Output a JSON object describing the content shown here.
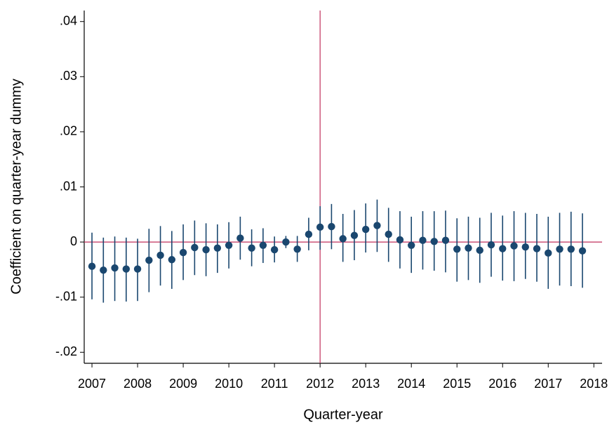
{
  "chart_data": {
    "type": "errorbar",
    "x_label": "Quarter-year",
    "y_label": "Coefficient on quarter-year dummy",
    "x": [
      2007,
      2007.25,
      2007.5,
      2007.75,
      2008,
      2008.25,
      2008.5,
      2008.75,
      2009,
      2009.25,
      2009.5,
      2009.75,
      2010,
      2010.25,
      2010.5,
      2010.75,
      2011,
      2011.25,
      2011.5,
      2011.75,
      2012,
      2012.25,
      2012.5,
      2012.75,
      2013,
      2013.25,
      2013.5,
      2013.75,
      2014,
      2014.25,
      2014.5,
      2014.75,
      2015,
      2015.25,
      2015.5,
      2015.75,
      2016,
      2016.25,
      2016.5,
      2016.75,
      2017,
      2017.25,
      2017.5,
      2017.75
    ],
    "series": [
      {
        "color": "#1a476f",
        "values": [
          -0.0044,
          -0.0051,
          -0.0047,
          -0.0049,
          -0.0049,
          -0.0033,
          -0.0024,
          -0.0032,
          -0.0019,
          -0.001,
          -0.0014,
          -0.0011,
          -0.0006,
          0.0007,
          -0.0011,
          -0.0006,
          -0.0014,
          0.0,
          -0.0013,
          0.0014,
          0.0027,
          0.0028,
          0.0006,
          0.0012,
          0.0023,
          0.003,
          0.0014,
          0.0004,
          -0.0006,
          0.0003,
          0.0001,
          0.0003,
          -0.0013,
          -0.0011,
          -0.0015,
          -0.0005,
          -0.0012,
          -0.0007,
          -0.0009,
          -0.0012,
          -0.002,
          -0.0013,
          -0.0013,
          -0.0016
        ],
        "upper": [
          0.0017,
          0.0008,
          0.001,
          0.0008,
          0.0006,
          0.0024,
          0.0029,
          0.002,
          0.0032,
          0.0039,
          0.0034,
          0.0032,
          0.0036,
          0.0046,
          0.0023,
          0.0025,
          0.001,
          0.0011,
          0.0011,
          0.0044,
          0.0065,
          0.0069,
          0.0051,
          0.0058,
          0.007,
          0.0077,
          0.0062,
          0.0056,
          0.0046,
          0.0056,
          0.0056,
          0.0057,
          0.0043,
          0.0046,
          0.0044,
          0.0053,
          0.0048,
          0.0056,
          0.0053,
          0.0051,
          0.0046,
          0.0053,
          0.0055,
          0.0052
        ],
        "lower": [
          -0.0104,
          -0.011,
          -0.0107,
          -0.0108,
          -0.0107,
          -0.0091,
          -0.0079,
          -0.0085,
          -0.0069,
          -0.006,
          -0.0062,
          -0.0056,
          -0.0048,
          -0.0032,
          -0.0044,
          -0.0038,
          -0.0037,
          -0.0011,
          -0.0036,
          -0.0015,
          -0.0014,
          -0.0013,
          -0.0036,
          -0.0033,
          -0.0019,
          -0.0018,
          -0.0036,
          -0.0048,
          -0.0056,
          -0.005,
          -0.0052,
          -0.0055,
          -0.0072,
          -0.0069,
          -0.0074,
          -0.0063,
          -0.007,
          -0.0071,
          -0.0067,
          -0.0072,
          -0.0085,
          -0.0079,
          -0.008,
          -0.0083
        ]
      }
    ],
    "xlim": [
      2006.83,
      2018.18
    ],
    "xticks": [
      2007,
      2008,
      2009,
      2010,
      2011,
      2012,
      2013,
      2014,
      2015,
      2016,
      2017,
      2018
    ],
    "ylim": [
      -0.022,
      0.042
    ],
    "yticks": [
      {
        "value": -0.02,
        "label": "-.02"
      },
      {
        "value": -0.01,
        "label": "-.01"
      },
      0,
      {
        "value": 0.01,
        "label": ".01"
      },
      {
        "value": 0.02,
        "label": ".02"
      },
      {
        "value": 0.03,
        "label": ".03"
      },
      {
        "value": 0.04,
        "label": ".04"
      }
    ],
    "vline": 2012,
    "hline": 0,
    "ref_color": "#c0305c"
  }
}
